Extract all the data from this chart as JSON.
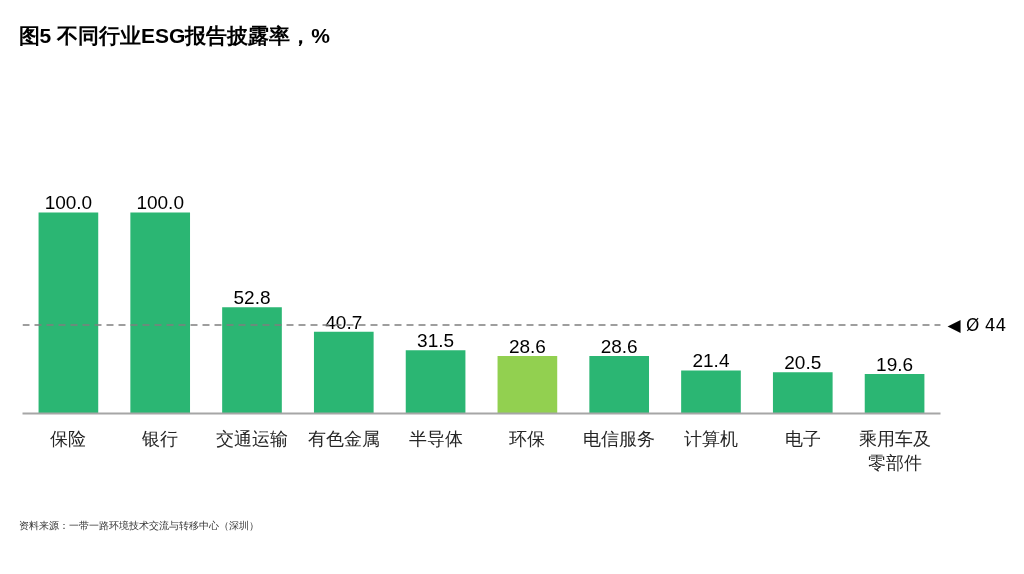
{
  "chart_data": {
    "type": "bar",
    "title": "图5 不同行业ESG报告披露率，%",
    "categories": [
      "保险",
      "银行",
      "交通运输",
      "有色金属",
      "半导体",
      "环保",
      "电信服务",
      "计算机",
      "电子",
      "乘用车及零部件"
    ],
    "values": [
      100.0,
      100.0,
      52.8,
      40.7,
      31.5,
      28.6,
      28.6,
      21.4,
      20.5,
      19.6
    ],
    "colors": [
      "#2bb673",
      "#2bb673",
      "#2bb673",
      "#2bb673",
      "#2bb673",
      "#92d050",
      "#2bb673",
      "#2bb673",
      "#2bb673",
      "#2bb673"
    ],
    "value_labels": [
      "100.0",
      "100.0",
      "52.8",
      "40.7",
      "31.5",
      "28.6",
      "28.6",
      "21.4",
      "20.5",
      "19.6"
    ],
    "tick_labels": "x",
    "ref_lines": [
      {
        "axis": "y",
        "value": 44,
        "label": "◀ Ø 44",
        "color": "#7f7f7f",
        "line_style": "dashed"
      }
    ],
    "annotations": [
      "资料来源：一带一路环境技术交流与转移中心（深圳）"
    ]
  }
}
